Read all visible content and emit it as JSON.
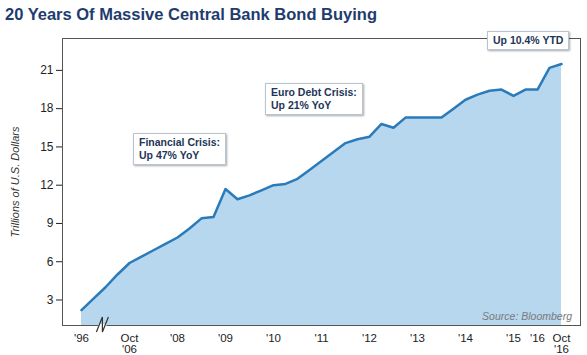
{
  "chart_data": {
    "type": "area",
    "title": "20 Years Of Massive Central Bank Bond Buying",
    "y_label": "Trillions of U.S. Dollars",
    "source": "Source: Bloomberg",
    "categories": [
      "'96",
      null,
      null,
      null,
      "Oct '06",
      null,
      null,
      null,
      "'08",
      null,
      null,
      null,
      "'09",
      null,
      null,
      null,
      "'10",
      null,
      null,
      null,
      "'11",
      null,
      null,
      null,
      "'12",
      null,
      null,
      null,
      "'13",
      null,
      null,
      null,
      "'14",
      null,
      null,
      null,
      "'15",
      null,
      "'16",
      null,
      "Oct '16"
    ],
    "values": [
      2.2,
      3.1,
      4.0,
      5.0,
      5.9,
      6.4,
      6.9,
      7.4,
      7.9,
      8.6,
      9.4,
      9.5,
      11.7,
      10.9,
      11.2,
      11.6,
      12.0,
      12.1,
      12.5,
      13.2,
      13.9,
      14.6,
      15.3,
      15.6,
      15.8,
      16.8,
      16.5,
      17.3,
      17.3,
      17.3,
      17.3,
      18.0,
      18.7,
      19.1,
      19.4,
      19.5,
      19.0,
      19.5,
      19.5,
      21.2,
      21.5
    ],
    "color": "#b7d7ee",
    "ylim": [
      1,
      23.5
    ],
    "yticks": [
      3,
      6,
      9,
      12,
      15,
      18,
      21
    ],
    "grid": false,
    "annotations": [
      "Financial Crisis:\nUp 47% YoY",
      "Euro Debt Crisis:\nUp 21% YoY",
      "Up 10.4% YTD"
    ]
  }
}
